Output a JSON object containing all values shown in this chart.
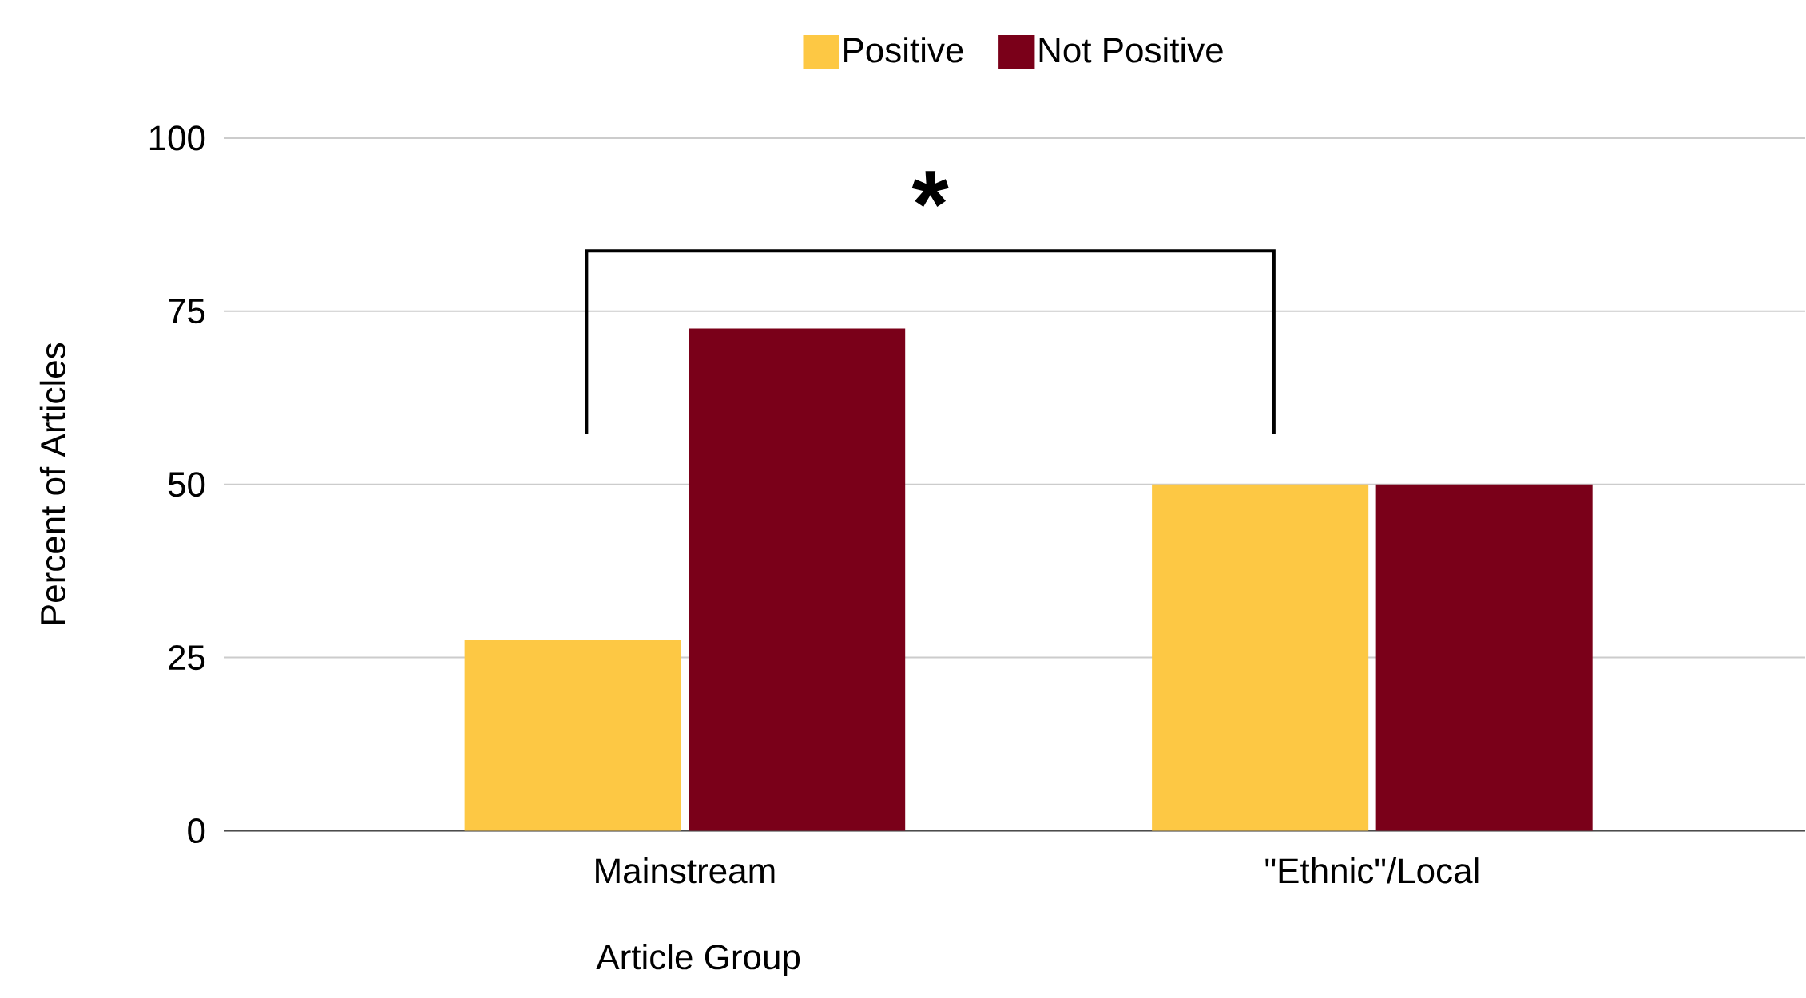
{
  "chart_data": {
    "type": "bar",
    "xlabel": "Article Group",
    "ylabel": "Percent of Articles",
    "categories": [
      "Mainstream",
      "\"Ethnic\"/Local"
    ],
    "series": [
      {
        "name": "Positive",
        "color": "#fdc844",
        "values": [
          27.5,
          50
        ]
      },
      {
        "name": "Not Positive",
        "color": "#7a0019",
        "values": [
          72.5,
          50
        ]
      }
    ],
    "ylim": [
      0,
      100
    ],
    "yticks": [
      0,
      25,
      50,
      75,
      100
    ],
    "grid": "y",
    "legend": "top",
    "annotations": [
      "*"
    ]
  }
}
